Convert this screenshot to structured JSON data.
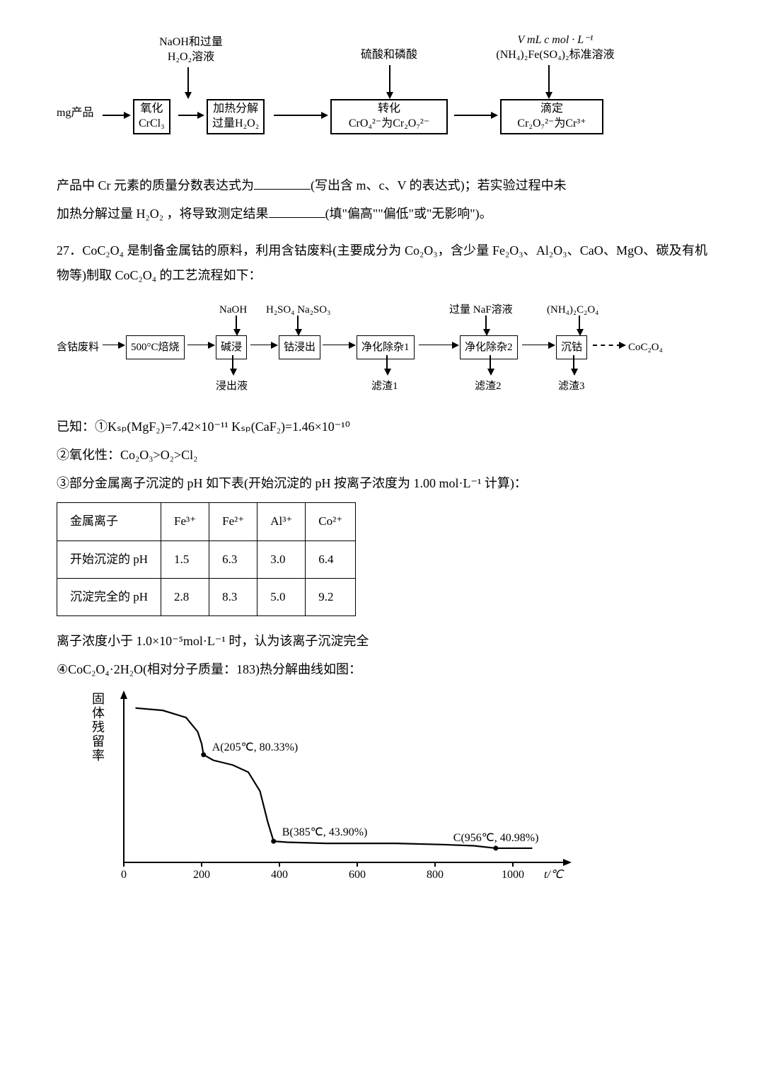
{
  "flow1": {
    "top_left": "NaOH和过量\nH₂O₂溶液",
    "top_mid": "硫酸和磷酸",
    "top_right_line1": "V mL c mol · L⁻¹",
    "top_right_line2": "(NH₄)₂Fe(SO₄)₂标准溶液",
    "left_input": "mg产品",
    "box1_l1": "氧化",
    "box1_l2": "CrCl₃",
    "box2_l1": "加热分解",
    "box2_l2": "过量H₂O₂",
    "box3_l1": "转化",
    "box3_l2": "CrO₄²⁻为Cr₂O₇²⁻",
    "box4_l1": "滴定",
    "box4_l2": "Cr₂O₇²⁻为Cr³⁺"
  },
  "para1": "产品中 Cr 元素的质量分数表达式为",
  "para1b": "(写出含 m、c、V 的表达式)；若实验过程中未",
  "para2a": "加热分解过量 H₂O₂ ，将导致测定结果",
  "para2b": "(填\"偏高\"\"偏低\"或\"无影响\")。",
  "q27": "27．CoC₂O₄ 是制备金属钴的原料，利用含钴废料(主要成分为 Co₂O₃，含少量 Fe₂O₃、Al₂O₃、CaO、MgO、碳及有机物等)制取 CoC₂O₄ 的工艺流程如下：",
  "flow2": {
    "top1": "NaOH",
    "top2": "H₂SO₄  Na₂SO₃",
    "top3": "过量 NaF溶液",
    "top4": "(NH₄)₂C₂O₄",
    "left": "含钴废料",
    "b1": "500°C焙烧",
    "b2": "碱浸",
    "b3": "钴浸出",
    "b4": "净化除杂1",
    "b5": "净化除杂2",
    "b6": "沉钴",
    "out": "CoC₂O₄",
    "d1": "浸出液",
    "d2": "滤渣1",
    "d3": "滤渣2",
    "d4": "滤渣3"
  },
  "known1": "已知：①Kₛₚ(MgF₂)=7.42×10⁻¹¹  Kₛₚ(CaF₂)=1.46×10⁻¹⁰",
  "known2": "②氧化性：Co₂O₃>O₂>Cl₂",
  "known3": "③部分金属离子沉淀的 pH 如下表(开始沉淀的 pH 按离子浓度为 1.00 mol·L⁻¹ 计算)：",
  "table": {
    "headers": [
      "金属离子",
      "Fe³⁺",
      "Fe²⁺",
      "Al³⁺",
      "Co²⁺"
    ],
    "row1": [
      "开始沉淀的 pH",
      "1.5",
      "6.3",
      "3.0",
      "6.4"
    ],
    "row2": [
      "沉淀完全的 pH",
      "2.8",
      "8.3",
      "5.0",
      "9.2"
    ]
  },
  "note": "离子浓度小于 1.0×10⁻⁵mol·L⁻¹ 时，认为该离子沉淀完全",
  "known4": "④CoC₂O₄·2H₂O(相对分子质量：183)热分解曲线如图：",
  "chart": {
    "ylabel": "固体残留率",
    "xticks": [
      "0",
      "200",
      "400",
      "600",
      "800",
      "1000"
    ],
    "xunit": "t/℃",
    "pointA": "A(205℃, 80.33%)",
    "pointB": "B(385℃, 43.90%)",
    "pointC": "C(956℃, 40.98%)",
    "xlim": [
      0,
      1100
    ],
    "ylim": [
      35,
      105
    ],
    "curve_points": [
      [
        30,
        100
      ],
      [
        100,
        99
      ],
      [
        160,
        96
      ],
      [
        190,
        90
      ],
      [
        200,
        85
      ],
      [
        205,
        80.33
      ],
      [
        230,
        78
      ],
      [
        280,
        76
      ],
      [
        320,
        73
      ],
      [
        350,
        65
      ],
      [
        370,
        52
      ],
      [
        385,
        43.9
      ],
      [
        420,
        43.5
      ],
      [
        520,
        43
      ],
      [
        700,
        43
      ],
      [
        820,
        42.5
      ],
      [
        900,
        42
      ],
      [
        956,
        40.98
      ],
      [
        1050,
        40.98
      ]
    ]
  }
}
